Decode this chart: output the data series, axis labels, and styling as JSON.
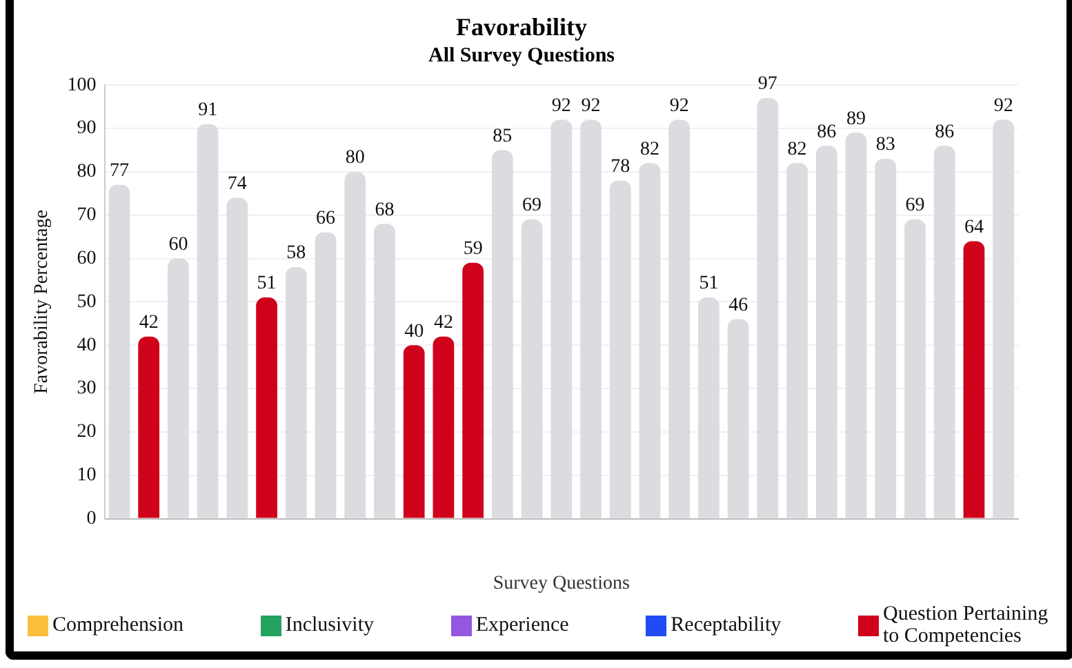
{
  "chart_data": {
    "type": "bar",
    "title": "Favorability",
    "subtitle": "All Survey Questions",
    "xlabel": "Survey Questions",
    "ylabel": "Favorability Percentage",
    "categories": [
      null,
      null,
      null,
      null,
      null,
      null,
      null,
      null,
      null,
      null,
      null,
      null,
      null,
      null,
      null,
      null,
      null,
      null,
      null,
      null,
      null,
      null,
      null,
      null,
      null,
      null,
      null,
      null,
      null,
      null,
      null
    ],
    "series": [
      {
        "name": "Comprehension",
        "color": "#fbbf3c",
        "values": [
          null,
          null,
          null,
          null,
          null,
          null,
          null,
          null,
          null,
          null,
          null,
          null,
          null,
          null,
          null,
          null,
          null,
          null,
          null,
          null,
          null,
          null,
          null,
          null,
          null,
          null,
          null,
          null,
          null,
          null,
          null
        ]
      },
      {
        "name": "Inclusivity",
        "color": "#23a35f",
        "values": [
          null,
          null,
          null,
          null,
          null,
          null,
          null,
          null,
          null,
          null,
          null,
          null,
          null,
          null,
          null,
          null,
          null,
          null,
          null,
          null,
          null,
          null,
          null,
          null,
          null,
          null,
          null,
          null,
          null,
          null,
          null
        ]
      },
      {
        "name": "Experience",
        "color": "#9657e0",
        "values": [
          null,
          null,
          null,
          null,
          null,
          null,
          null,
          null,
          null,
          null,
          null,
          null,
          null,
          null,
          null,
          null,
          null,
          null,
          null,
          null,
          null,
          null,
          null,
          null,
          null,
          null,
          null,
          null,
          null,
          null,
          null
        ]
      },
      {
        "name": "Receptability",
        "color": "#1f4cf5",
        "values": [
          null,
          null,
          null,
          null,
          null,
          null,
          null,
          null,
          null,
          null,
          null,
          null,
          null,
          null,
          null,
          null,
          null,
          null,
          null,
          null,
          null,
          null,
          null,
          null,
          null,
          null,
          null,
          null,
          null,
          null,
          null
        ]
      },
      {
        "color": "#dcdce0",
        "values": [
          77,
          null,
          60,
          91,
          74,
          null,
          58,
          66,
          80,
          68,
          null,
          null,
          null,
          85,
          69,
          92,
          92,
          78,
          82,
          92,
          51,
          46,
          97,
          82,
          86,
          89,
          83,
          69,
          86,
          null,
          92
        ]
      },
      {
        "name": "Question Pertaining to Competencies",
        "color": "#d0021b",
        "values": [
          null,
          42,
          null,
          null,
          null,
          51,
          null,
          null,
          null,
          null,
          40,
          42,
          59,
          null,
          null,
          null,
          null,
          null,
          null,
          null,
          null,
          null,
          null,
          null,
          null,
          null,
          null,
          null,
          null,
          64,
          null
        ]
      }
    ],
    "ylim": [
      0,
      100
    ],
    "yticks": [
      0,
      10,
      20,
      30,
      40,
      50,
      60,
      70,
      80,
      90,
      100
    ],
    "grid": "y",
    "data_labels": true,
    "legend": "bottom"
  }
}
